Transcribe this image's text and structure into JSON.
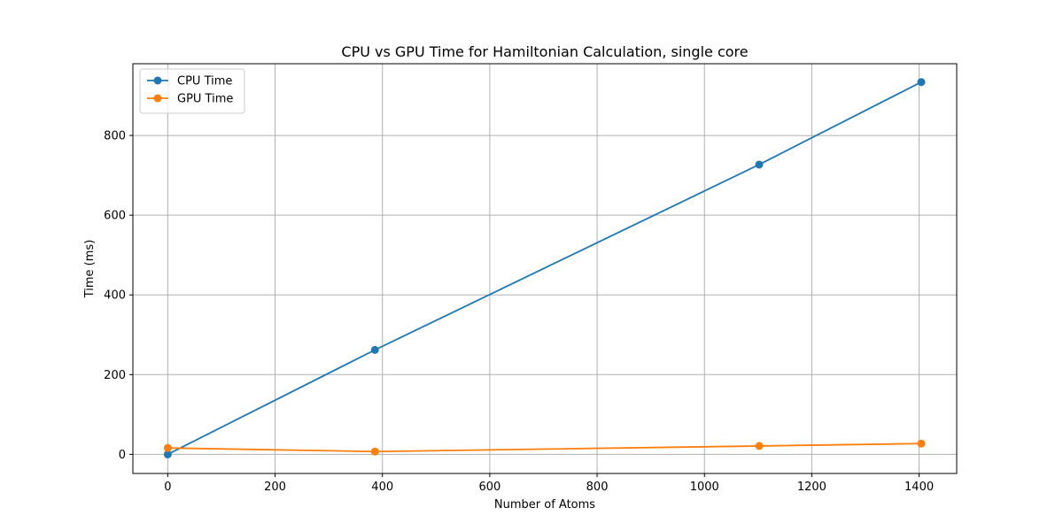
{
  "chart_data": {
    "type": "line",
    "title": "CPU vs GPU Time for Hamiltonian Calculation, single core",
    "xlabel": "Number of Atoms",
    "ylabel": "Time (ms)",
    "xlim": [
      -65,
      1470
    ],
    "ylim": [
      -48,
      980
    ],
    "xticks": [
      0,
      200,
      400,
      600,
      800,
      1000,
      1200,
      1400
    ],
    "yticks": [
      0,
      200,
      400,
      600,
      800
    ],
    "grid": true,
    "legend_position": "top-left",
    "series": [
      {
        "name": "CPU Time",
        "color": "#1f77b4",
        "x": [
          0,
          386,
          1102,
          1404
        ],
        "y": [
          0,
          262,
          727,
          934
        ]
      },
      {
        "name": "GPU Time",
        "color": "#ff7f0e",
        "x": [
          0,
          386,
          1102,
          1404
        ],
        "y": [
          16,
          7,
          21,
          27
        ]
      }
    ]
  }
}
